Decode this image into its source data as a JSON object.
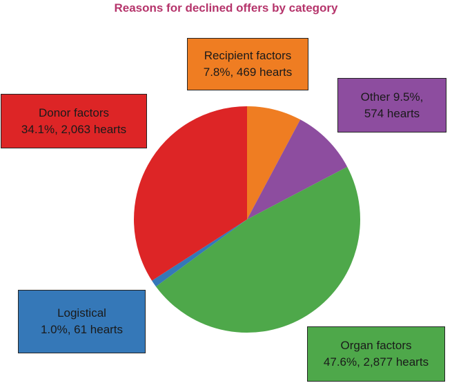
{
  "chart_data": {
    "type": "pie",
    "title": "Reasons for declined offers by category",
    "slices": [
      {
        "key": "recipient",
        "label_line1": "Recipient factors",
        "label_line2": "7.8%, 469 hearts",
        "percent": 7.8,
        "hearts": 469,
        "color": "#ef7d22"
      },
      {
        "key": "other",
        "label_line1": "Other 9.5%,",
        "label_line2": "574 hearts",
        "percent": 9.5,
        "hearts": 574,
        "color": "#8d4d9f"
      },
      {
        "key": "organ",
        "label_line1": "Organ factors",
        "label_line2": "47.6%, 2,877 hearts",
        "percent": 47.6,
        "hearts": 2877,
        "color": "#4ea84a"
      },
      {
        "key": "logistical",
        "label_line1": "Logistical",
        "label_line2": "1.0%, 61 hearts",
        "percent": 1.0,
        "hearts": 61,
        "color": "#3578b8"
      },
      {
        "key": "donor",
        "label_line1": "Donor factors",
        "label_line2": "34.1%, 2,063 hearts",
        "percent": 34.1,
        "hearts": 2063,
        "color": "#dd2526"
      }
    ],
    "start": "12 o'clock",
    "direction": "clockwise"
  }
}
